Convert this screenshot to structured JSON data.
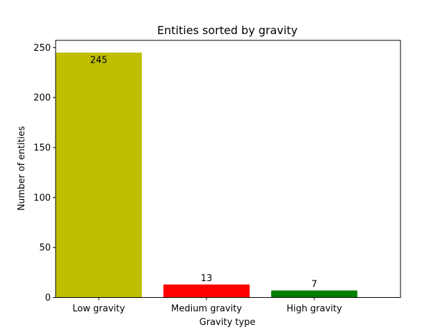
{
  "chart_data": {
    "type": "bar",
    "title": "Entities sorted by gravity",
    "xlabel": "Gravity type",
    "ylabel": "Number of entities",
    "categories": [
      "Low gravity",
      "Medium gravity",
      "High gravity"
    ],
    "values": [
      245,
      13,
      7
    ],
    "data_labels": [
      "245",
      "13",
      "7"
    ],
    "colors": [
      "#bfbf00",
      "#ff0000",
      "#008000"
    ],
    "ylim": [
      0,
      257.25
    ],
    "yticks": [
      0,
      50,
      100,
      150,
      200,
      250
    ],
    "ytick_labels": [
      "0",
      "50",
      "100",
      "150",
      "200",
      "250"
    ],
    "grid": false,
    "legend": "none"
  }
}
